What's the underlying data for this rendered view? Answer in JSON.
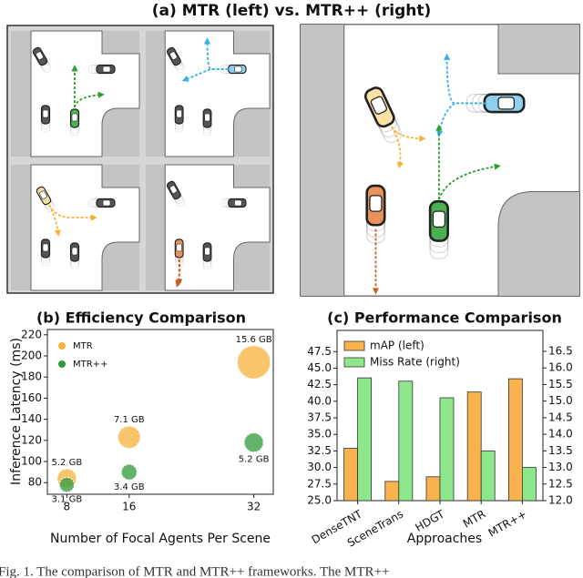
{
  "figure": {
    "title": "(a) MTR (left) vs. MTR++ (right)",
    "caption": "Fig. 1. The comparison of MTR and MTR++ frameworks. The MTR++"
  },
  "chart_data": [
    {
      "type": "scatter",
      "title": "(b) Efficiency Comparison",
      "x_label": "Number of Focal Agents Per Scene",
      "y_label": "Inference Latency (ms)",
      "xlim": [
        5.5,
        34.5
      ],
      "xticks": [
        8,
        16,
        32
      ],
      "ylim": [
        69,
        225
      ],
      "yticks": [
        80,
        100,
        120,
        140,
        160,
        180,
        200,
        220
      ],
      "legend": "upper left",
      "series": [
        {
          "name": "MTR",
          "color": "#f7b23b",
          "x": [
            8,
            16,
            32
          ],
          "values": [
            84,
            123,
            194
          ],
          "sizes": [
            5.2,
            7.1,
            15.6
          ],
          "size_labels": [
            "5.2 GB",
            "7.1 GB",
            "15.6 GB"
          ]
        },
        {
          "name": "MTR++",
          "color": "#2f9a3a",
          "x": [
            8,
            16,
            32
          ],
          "values": [
            78,
            90,
            118
          ],
          "sizes": [
            3.1,
            3.4,
            5.2
          ],
          "size_labels": [
            "3.1 GB",
            "3.4 GB",
            "5.2 GB"
          ]
        }
      ]
    },
    {
      "type": "bar",
      "title": "(c) Performance Comparison",
      "x_label": "Approaches",
      "categories": [
        "DenseTNT",
        "SceneTrans",
        "HDGT",
        "MTR",
        "MTR++"
      ],
      "ylim": [
        25,
        50.7
      ],
      "yticks": [
        {
          "value": 25,
          "label": "25.0"
        },
        27.5,
        {
          "value": 30,
          "label": "30.0"
        },
        32.5,
        {
          "value": 35,
          "label": "35.0"
        },
        37.5,
        {
          "value": 40,
          "label": "40.0"
        },
        42.5,
        {
          "value": 45,
          "label": "45.0"
        },
        47.5
      ],
      "y2lim": [
        12,
        17.13
      ],
      "y2ticks": [
        {
          "value": 12,
          "label": "12.0"
        },
        12.5,
        {
          "value": 13,
          "label": "13.0"
        },
        13.5,
        {
          "value": 14,
          "label": "14.0"
        },
        14.5,
        {
          "value": 15,
          "label": "15.0"
        },
        15.5,
        {
          "value": 16,
          "label": "16.0"
        },
        16.5
      ],
      "legend": "upper left",
      "series": [
        {
          "name": "mAP (left)",
          "color": "#f9b24e",
          "values": [
            32.9,
            27.9,
            28.6,
            41.4,
            43.4
          ]
        },
        {
          "name": "Miss Rate (right)",
          "color": "#8de88c",
          "axis": "y2",
          "values": [
            15.7,
            15.6,
            15.1,
            13.5,
            13.0
          ]
        }
      ]
    }
  ]
}
